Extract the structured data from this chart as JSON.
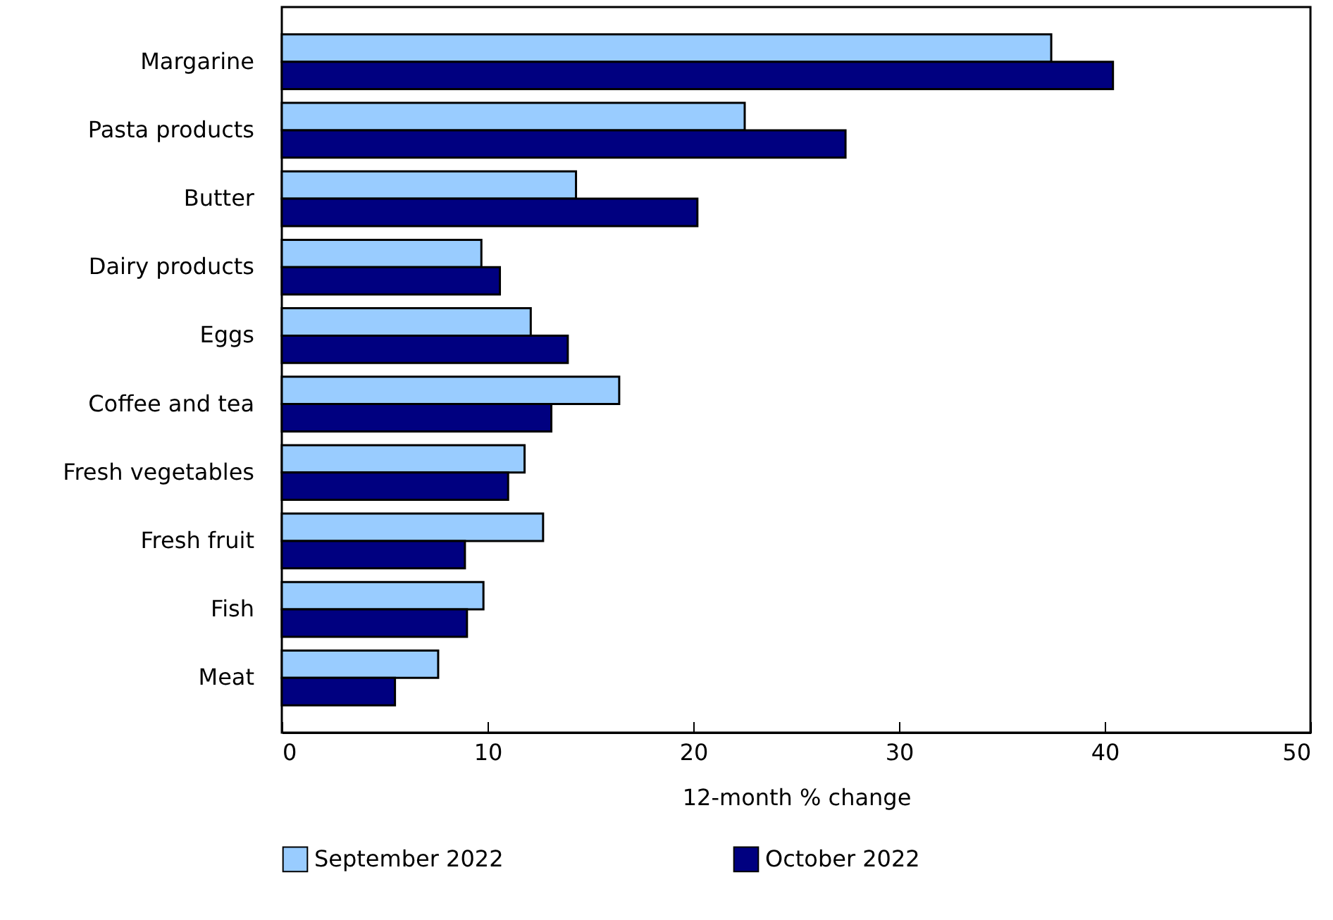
{
  "chart_data": {
    "type": "bar",
    "orientation": "horizontal",
    "xlabel": "12-month % change",
    "categories": [
      "Margarine",
      "Pasta products",
      "Butter",
      "Dairy products",
      "Eggs",
      "Coffee and tea",
      "Fresh vegetables",
      "Fresh fruit",
      "Fish",
      "Meat"
    ],
    "series": [
      {
        "name": "September 2022",
        "color": "#99ccff",
        "values": [
          37.4,
          22.5,
          14.3,
          9.7,
          12.1,
          16.4,
          11.8,
          12.7,
          9.8,
          7.6
        ]
      },
      {
        "name": "October 2022",
        "color": "#000080",
        "values": [
          40.4,
          27.4,
          20.2,
          10.6,
          13.9,
          13.1,
          11.0,
          8.9,
          9.0,
          5.5
        ]
      }
    ],
    "xlim": [
      0,
      50
    ],
    "xticks": [
      0,
      10,
      20,
      30,
      40,
      50
    ],
    "grid": false,
    "legend": "bottom"
  }
}
